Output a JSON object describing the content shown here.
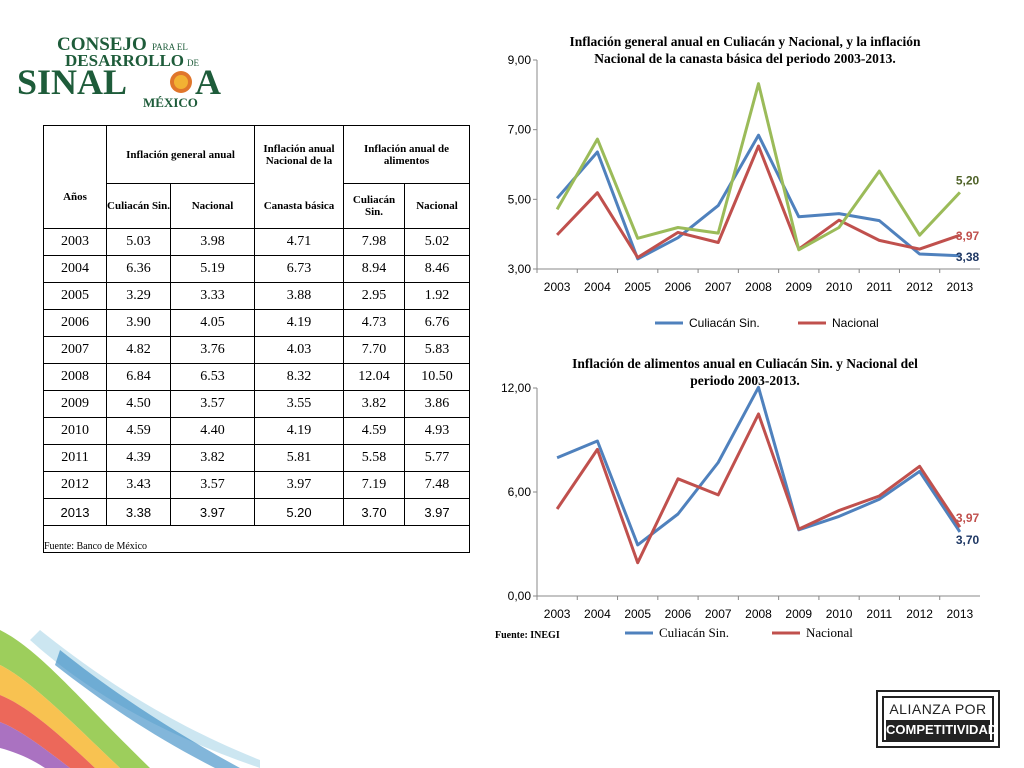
{
  "logo": {
    "line1": "CONSEJO",
    "line1_small": "PARA EL",
    "line2": "DESARROLLO",
    "line2_small": "DE",
    "line3": "SINAL",
    "line3_end": "A",
    "line4": "MÉXICO"
  },
  "table": {
    "header": {
      "years": "Años",
      "general": "Inflación general anual",
      "canasta_top": "Inflación anual Nacional de la",
      "canasta_bottom": "Canasta básica",
      "alimentos": "Inflación anual de alimentos",
      "culiacan": "Culiacán Sin.",
      "nacional": "Nacional",
      "culiacan2": "Culiacán Sin.",
      "nacional2": "Nacional"
    },
    "rows": [
      [
        "2003",
        "5.03",
        "3.98",
        "4.71",
        "7.98",
        "5.02"
      ],
      [
        "2004",
        "6.36",
        "5.19",
        "6.73",
        "8.94",
        "8.46"
      ],
      [
        "2005",
        "3.29",
        "3.33",
        "3.88",
        "2.95",
        "1.92"
      ],
      [
        "2006",
        "3.90",
        "4.05",
        "4.19",
        "4.73",
        "6.76"
      ],
      [
        "2007",
        "4.82",
        "3.76",
        "4.03",
        "7.70",
        "5.83"
      ],
      [
        "2008",
        "6.84",
        "6.53",
        "8.32",
        "12.04",
        "10.50"
      ],
      [
        "2009",
        "4.50",
        "3.57",
        "3.55",
        "3.82",
        "3.86"
      ],
      [
        "2010",
        "4.59",
        "4.40",
        "4.19",
        "4.59",
        "4.93"
      ],
      [
        "2011",
        "4.39",
        "3.82",
        "5.81",
        "5.58",
        "5.77"
      ],
      [
        "2012",
        "3.43",
        "3.57",
        "3.97",
        "7.19",
        "7.48"
      ],
      [
        "2013",
        "3.38",
        "3.97",
        "5.20",
        "3.70",
        "3.97"
      ]
    ],
    "source": "Fuente: Banco de México"
  },
  "colors": {
    "blue": "#4F81BD",
    "red": "#C0504D",
    "green": "#9BBB59"
  },
  "chart_data": [
    {
      "type": "line",
      "title": "Inflación general anual en Culiacán y Nacional, y la inflación Nacional de la canasta básica del periodo 2003-2013.",
      "title_line1": "Inflación general anual en Culiacán y Nacional, y la inflación",
      "title_line2": "Nacional de la canasta básica del periodo 2003-2013.",
      "categories": [
        "2003",
        "2004",
        "2005",
        "2006",
        "2007",
        "2008",
        "2009",
        "2010",
        "2011",
        "2012",
        "2013"
      ],
      "ylim": [
        3,
        9
      ],
      "yticks": [
        "3,00",
        "5,00",
        "7,00",
        "9,00"
      ],
      "series": [
        {
          "name": "Culiacán Sin.",
          "color": "#4F81BD",
          "values": [
            5.03,
            6.36,
            3.29,
            3.9,
            4.82,
            6.84,
            4.5,
            4.59,
            4.39,
            3.43,
            3.38
          ]
        },
        {
          "name": "Nacional",
          "color": "#C0504D",
          "values": [
            3.98,
            5.19,
            3.33,
            4.05,
            3.76,
            6.53,
            3.57,
            4.4,
            3.82,
            3.57,
            3.97
          ]
        },
        {
          "color": "#9BBB59",
          "values": [
            4.71,
            6.73,
            3.88,
            4.19,
            4.03,
            8.32,
            3.55,
            4.19,
            5.81,
            3.97,
            5.2
          ]
        }
      ],
      "end_labels": [
        {
          "text": "5,20",
          "color": "#4F6228",
          "value": 5.2
        },
        {
          "text": "3,97",
          "color": "#C0504D",
          "value": 3.97
        },
        {
          "text": "3,38",
          "color": "#1F3864",
          "value": 3.38
        }
      ],
      "legend": [
        "Culiacán Sin.",
        "Nacional"
      ],
      "legend_position": "bottom",
      "grid": false
    },
    {
      "type": "line",
      "title": "Inflación de alimentos anual en Culiacán Sin. y Nacional del periodo 2003-2013.",
      "title_line1": "Inflación de alimentos anual en Culiacán Sin. y Nacional del",
      "title_line2": "periodo 2003-2013.",
      "categories": [
        "2003",
        "2004",
        "2005",
        "2006",
        "2007",
        "2008",
        "2009",
        "2010",
        "2011",
        "2012",
        "2013"
      ],
      "ylim": [
        0,
        12
      ],
      "yticks": [
        "0,00",
        "6,00",
        "12,00"
      ],
      "series": [
        {
          "name": "Culiacán Sin.",
          "color": "#4F81BD",
          "values": [
            7.98,
            8.94,
            2.95,
            4.73,
            7.7,
            12.04,
            3.82,
            4.59,
            5.58,
            7.19,
            3.7
          ]
        },
        {
          "name": "Nacional",
          "color": "#C0504D",
          "values": [
            5.02,
            8.46,
            1.92,
            6.76,
            5.83,
            10.5,
            3.86,
            4.93,
            5.77,
            7.48,
            3.97
          ]
        }
      ],
      "end_labels": [
        {
          "text": "3,97",
          "color": "#C0504D",
          "value": 3.97
        },
        {
          "text": "3,70",
          "color": "#1F3864",
          "value": 3.7
        }
      ],
      "legend": [
        "Culiacán Sin.",
        "Nacional"
      ],
      "legend_position": "bottom",
      "grid": false
    }
  ],
  "fuente_chart2": "Fuente: INEGI",
  "alianza": {
    "line1": "ALIANZA POR LA",
    "line2": "COMPETITIVIDAD"
  }
}
